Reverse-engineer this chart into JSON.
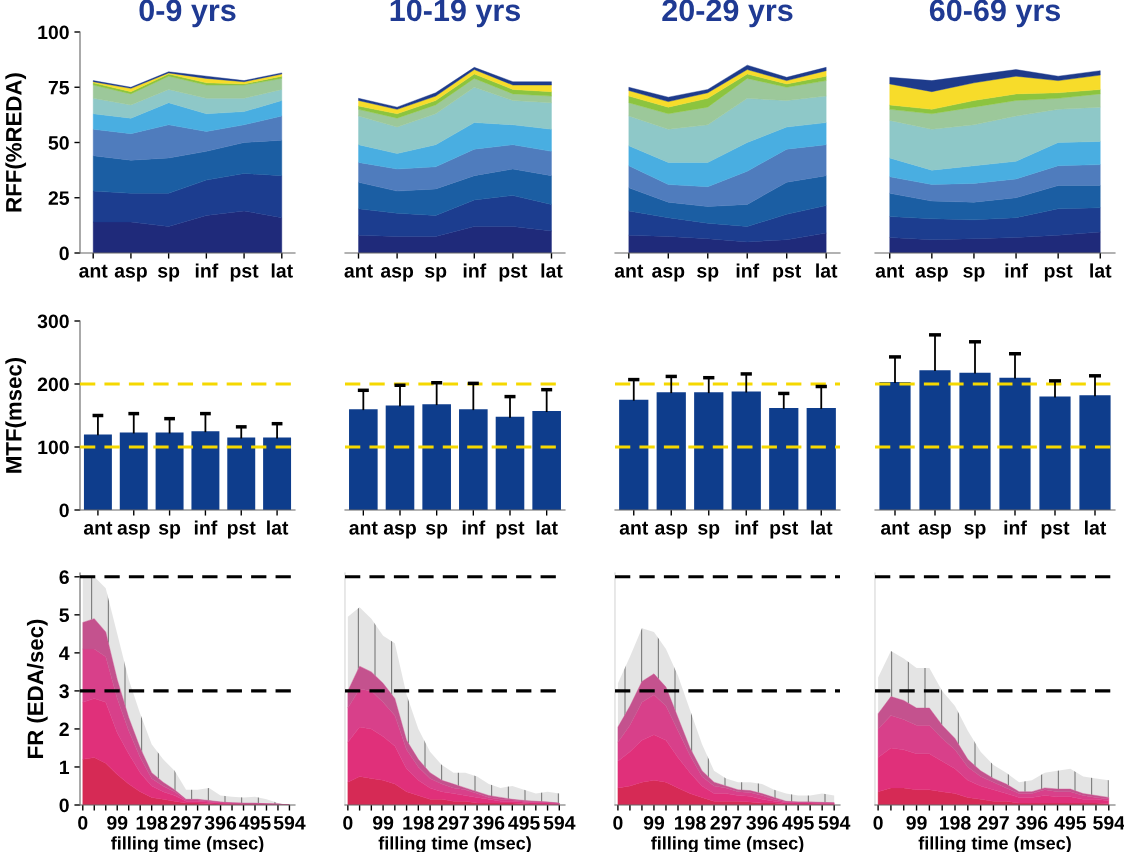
{
  "chart_data": [
    {
      "type": "area",
      "stacked": true,
      "title": "0-9 yrs",
      "ylabel": "RFF(%REDA)",
      "categories": [
        "ant",
        "asp",
        "sp",
        "inf",
        "pst",
        "lat"
      ],
      "ylim": [
        0,
        100
      ],
      "yticks": [
        0,
        25,
        50,
        75,
        100
      ],
      "series": [
        {
          "color": "#1f2a7a",
          "values": [
            14,
            14,
            12,
            17,
            19,
            16
          ]
        },
        {
          "color": "#1c3d8f",
          "values": [
            14,
            13,
            15,
            16,
            17,
            19
          ]
        },
        {
          "color": "#1b5ea3",
          "values": [
            16,
            15,
            16,
            13,
            14,
            16
          ]
        },
        {
          "color": "#4f7cbd",
          "values": [
            12,
            12,
            15,
            9,
            8,
            11
          ]
        },
        {
          "color": "#49aee1",
          "values": [
            7,
            7,
            10,
            8,
            6,
            7
          ]
        },
        {
          "color": "#8ec8c8",
          "values": [
            7,
            6,
            6,
            7,
            6,
            5
          ]
        },
        {
          "color": "#9cc89a",
          "values": [
            6,
            5,
            6,
            6,
            6,
            5
          ]
        },
        {
          "color": "#8cc43f",
          "values": [
            1,
            1,
            1,
            1,
            0.5,
            1
          ]
        },
        {
          "color": "#f7dc2a",
          "values": [
            0.5,
            1.5,
            0.5,
            2,
            1,
            1
          ]
        },
        {
          "color": "#1e3b8b",
          "values": [
            0.5,
            0.5,
            0.5,
            1,
            0.5,
            0.5
          ]
        }
      ]
    },
    {
      "type": "area",
      "stacked": true,
      "title": "10-19 yrs",
      "categories": [
        "ant",
        "asp",
        "sp",
        "inf",
        "pst",
        "lat"
      ],
      "ylim": [
        0,
        100
      ],
      "tick_labels": "x",
      "series": [
        {
          "color": "#1f2a7a",
          "values": [
            8,
            7.5,
            7.5,
            12,
            12,
            10
          ]
        },
        {
          "color": "#1c3d8f",
          "values": [
            12,
            10.5,
            9.5,
            12,
            14,
            12
          ]
        },
        {
          "color": "#1b5ea3",
          "values": [
            12,
            10,
            12,
            11,
            12,
            13
          ]
        },
        {
          "color": "#4f7cbd",
          "values": [
            9,
            10,
            10,
            12,
            11,
            11
          ]
        },
        {
          "color": "#49aee1",
          "values": [
            8,
            7,
            10,
            12,
            9,
            10
          ]
        },
        {
          "color": "#8ec8c8",
          "values": [
            13,
            12,
            14,
            16,
            11,
            12
          ]
        },
        {
          "color": "#9cc89a",
          "values": [
            3,
            4,
            4,
            4,
            3,
            3
          ]
        },
        {
          "color": "#8cc43f",
          "values": [
            1.5,
            2,
            2,
            2,
            2,
            2
          ]
        },
        {
          "color": "#f7dc2a",
          "values": [
            2.5,
            2,
            2,
            2,
            2,
            3
          ]
        },
        {
          "color": "#1e3b8b",
          "values": [
            1,
            1,
            1.5,
            1,
            1.5,
            1.5
          ]
        }
      ]
    },
    {
      "type": "area",
      "stacked": true,
      "title": "20-29 yrs",
      "categories": [
        "ant",
        "asp",
        "sp",
        "inf",
        "pst",
        "lat"
      ],
      "ylim": [
        0,
        100
      ],
      "tick_labels": "x",
      "series": [
        {
          "color": "#1f2a7a",
          "values": [
            8,
            7.5,
            6.5,
            5,
            6,
            9
          ]
        },
        {
          "color": "#1c3d8f",
          "values": [
            11,
            8.5,
            7,
            7,
            11.5,
            12.5
          ]
        },
        {
          "color": "#1b5ea3",
          "values": [
            10.5,
            7,
            7.5,
            10,
            14.5,
            13.5
          ]
        },
        {
          "color": "#4f7cbd",
          "values": [
            10,
            8,
            9,
            15,
            15,
            14
          ]
        },
        {
          "color": "#49aee1",
          "values": [
            9,
            10,
            11,
            13,
            10,
            10
          ]
        },
        {
          "color": "#8ec8c8",
          "values": [
            13.5,
            15,
            17,
            20,
            12,
            12
          ]
        },
        {
          "color": "#9cc89a",
          "values": [
            6,
            7,
            8,
            9,
            6,
            7
          ]
        },
        {
          "color": "#8cc43f",
          "values": [
            3,
            3,
            4,
            2,
            1.5,
            2
          ]
        },
        {
          "color": "#f7dc2a",
          "values": [
            2.5,
            2.5,
            2.5,
            2,
            1.5,
            2.5
          ]
        },
        {
          "color": "#1e3b8b",
          "values": [
            1.5,
            2,
            1.5,
            2,
            1.5,
            1.5
          ]
        }
      ]
    },
    {
      "type": "area",
      "stacked": true,
      "title": "60-69 yrs",
      "categories": [
        "ant",
        "asp",
        "sp",
        "inf",
        "pst",
        "lat"
      ],
      "ylim": [
        0,
        100
      ],
      "tick_labels": "x",
      "series": [
        {
          "color": "#1f2a7a",
          "values": [
            7,
            6,
            6.5,
            7,
            8,
            9.5
          ]
        },
        {
          "color": "#1c3d8f",
          "values": [
            9.5,
            9.5,
            8.5,
            9,
            12,
            11
          ]
        },
        {
          "color": "#1b5ea3",
          "values": [
            10.5,
            8,
            8,
            9,
            10.5,
            10
          ]
        },
        {
          "color": "#4f7cbd",
          "values": [
            7.5,
            7.5,
            8.5,
            8.5,
            9,
            9.5
          ]
        },
        {
          "color": "#49aee1",
          "values": [
            8.5,
            6.5,
            8,
            8,
            10.5,
            10.5
          ]
        },
        {
          "color": "#8ec8c8",
          "values": [
            17,
            18.5,
            18.5,
            20.5,
            15,
            15.5
          ]
        },
        {
          "color": "#9cc89a",
          "values": [
            5,
            7,
            8,
            7,
            5,
            6
          ]
        },
        {
          "color": "#8cc43f",
          "values": [
            2,
            2,
            3,
            3,
            2.5,
            2
          ]
        },
        {
          "color": "#f7dc2a",
          "values": [
            9.5,
            8,
            8,
            8,
            5.5,
            6.5
          ]
        },
        {
          "color": "#1e3b8b",
          "values": [
            3,
            5,
            3.5,
            3,
            2,
            2
          ]
        }
      ]
    },
    {
      "type": "bar",
      "ylabel": "MTF(msec)",
      "categories": [
        "ant",
        "asp",
        "sp",
        "inf",
        "pst",
        "lat"
      ],
      "color": "#0e3d8c",
      "ylim": [
        0,
        300
      ],
      "yticks": [
        0,
        100,
        200,
        300
      ],
      "values": [
        120,
        123,
        123,
        125,
        115,
        115
      ],
      "errors": [
        [
          120,
          150
        ],
        [
          123,
          153
        ],
        [
          123,
          145
        ],
        [
          125,
          153
        ],
        [
          115,
          132
        ],
        [
          115,
          137
        ]
      ],
      "ref_lines": [
        {
          "axis": "y",
          "value": 100,
          "color": "#f5d800",
          "line_style": "dashed"
        },
        {
          "axis": "y",
          "value": 200,
          "color": "#f5d800",
          "line_style": "dashed"
        }
      ]
    },
    {
      "type": "bar",
      "categories": [
        "ant",
        "asp",
        "sp",
        "inf",
        "pst",
        "lat"
      ],
      "color": "#0e3d8c",
      "ylim": [
        0,
        300
      ],
      "tick_labels": "x",
      "values": [
        160,
        166,
        168,
        160,
        148,
        157
      ],
      "errors": [
        [
          160,
          190
        ],
        [
          166,
          198
        ],
        [
          168,
          202
        ],
        [
          160,
          201
        ],
        [
          148,
          180
        ],
        [
          157,
          191
        ]
      ],
      "ref_lines": [
        {
          "axis": "y",
          "value": 100,
          "color": "#f5d800",
          "line_style": "dashed"
        },
        {
          "axis": "y",
          "value": 200,
          "color": "#f5d800",
          "line_style": "dashed"
        }
      ]
    },
    {
      "type": "bar",
      "categories": [
        "ant",
        "asp",
        "sp",
        "inf",
        "pst",
        "lat"
      ],
      "color": "#0e3d8c",
      "ylim": [
        0,
        300
      ],
      "tick_labels": "x",
      "values": [
        175,
        187,
        187,
        188,
        162,
        162
      ],
      "errors": [
        [
          175,
          207
        ],
        [
          187,
          212
        ],
        [
          187,
          210
        ],
        [
          188,
          216
        ],
        [
          162,
          185
        ],
        [
          162,
          196
        ]
      ],
      "ref_lines": [
        {
          "axis": "y",
          "value": 100,
          "color": "#f5d800",
          "line_style": "dashed"
        },
        {
          "axis": "y",
          "value": 200,
          "color": "#f5d800",
          "line_style": "dashed"
        }
      ]
    },
    {
      "type": "bar",
      "categories": [
        "ant",
        "asp",
        "sp",
        "inf",
        "pst",
        "lat"
      ],
      "color": "#0e3d8c",
      "ylim": [
        0,
        300
      ],
      "tick_labels": "x",
      "values": [
        203,
        222,
        218,
        210,
        180,
        182
      ],
      "errors": [
        [
          203,
          243
        ],
        [
          222,
          278
        ],
        [
          218,
          267
        ],
        [
          210,
          248
        ],
        [
          180,
          205
        ],
        [
          182,
          213
        ]
      ],
      "ref_lines": [
        {
          "axis": "y",
          "value": 100,
          "color": "#f5d800",
          "line_style": "dashed"
        },
        {
          "axis": "y",
          "value": 200,
          "color": "#f5d800",
          "line_style": "dashed"
        }
      ]
    },
    {
      "type": "area",
      "stacked": true,
      "ylabel": "FR (EDA/sec)",
      "xlabel": "filling time (msec)",
      "x": [
        0,
        33,
        66,
        99,
        132,
        165,
        198,
        231,
        264,
        297,
        330,
        363,
        396,
        429,
        462,
        495,
        528,
        561,
        594
      ],
      "xlim": [
        -8,
        610
      ],
      "ylim": [
        0,
        6.1
      ],
      "yticks": [
        0,
        1,
        2,
        3,
        4,
        5,
        6
      ],
      "xticks": [
        0,
        {
          "value": 33,
          "label": null
        },
        {
          "value": 66,
          "label": null
        },
        99,
        {
          "value": 132,
          "label": null
        },
        {
          "value": 165,
          "label": null
        },
        198,
        {
          "value": 231,
          "label": null
        },
        {
          "value": 264,
          "label": null
        },
        297,
        {
          "value": 330,
          "label": null
        },
        {
          "value": 363,
          "label": null
        },
        396,
        {
          "value": 429,
          "label": null
        },
        {
          "value": 462,
          "label": null
        },
        495,
        {
          "value": 528,
          "label": null
        },
        {
          "value": 561,
          "label": null
        },
        594
      ],
      "series": [
        {
          "color": "#d62a55",
          "values": [
            1.2,
            1.25,
            1.1,
            0.8,
            0.55,
            0.35,
            0.2,
            0.15,
            0.1,
            0.05,
            0.05,
            0.03,
            0.02,
            0.02,
            0.01,
            0.01,
            0.01,
            0.01,
            0
          ]
        },
        {
          "color": "#e0307a",
          "values": [
            1.5,
            1.55,
            1.6,
            1.1,
            0.8,
            0.5,
            0.3,
            0.2,
            0.15,
            0.05,
            0.05,
            0.04,
            0.03,
            0.02,
            0.02,
            0.02,
            0.01,
            0.01,
            0
          ]
        },
        {
          "color": "#d8408a",
          "values": [
            1.4,
            1.3,
            1.2,
            0.9,
            0.6,
            0.4,
            0.2,
            0.15,
            0.1,
            0.03,
            0.03,
            0.03,
            0.02,
            0.01,
            0.01,
            0.01,
            0.01,
            0,
            0
          ]
        },
        {
          "color": "#c4528e",
          "values": [
            0.7,
            0.8,
            0.65,
            0.5,
            0.35,
            0.25,
            0.15,
            0.1,
            0.05,
            0.02,
            0.02,
            0.02,
            0.01,
            0.01,
            0.01,
            0.01,
            0,
            0,
            0
          ],
          "lower": [
            4.8,
            4.9,
            4.55,
            3.3,
            2.3,
            1.5,
            0.85,
            0.6,
            0.4,
            0.15,
            0.15,
            0.12,
            0.08,
            0.06,
            0.05,
            0.05,
            0.03,
            0.02,
            0
          ],
          "upper": [
            6,
            6,
            5.7,
            4.5,
            3.3,
            2.4,
            1.6,
            1.2,
            0.9,
            0.4,
            0.4,
            0.45,
            0.25,
            0.22,
            0.2,
            0.22,
            0.15,
            0.05,
            0
          ]
        }
      ],
      "ref_lines": [
        {
          "axis": "y",
          "value": 3,
          "color": "#000000",
          "line_style": "dashed"
        },
        {
          "axis": "y",
          "value": 6,
          "color": "#000000",
          "line_style": "dashed"
        }
      ]
    },
    {
      "type": "area",
      "stacked": true,
      "xlabel": "filling time (msec)",
      "x": [
        0,
        33,
        66,
        99,
        132,
        165,
        198,
        231,
        264,
        297,
        330,
        363,
        396,
        429,
        462,
        495,
        528,
        561,
        594
      ],
      "xlim": [
        -8,
        610
      ],
      "ylim": [
        0,
        6.1
      ],
      "tick_labels": "x",
      "xticks": [
        0,
        {
          "value": 33,
          "label": null
        },
        {
          "value": 66,
          "label": null
        },
        99,
        {
          "value": 132,
          "label": null
        },
        {
          "value": 165,
          "label": null
        },
        198,
        {
          "value": 231,
          "label": null
        },
        {
          "value": 264,
          "label": null
        },
        297,
        {
          "value": 330,
          "label": null
        },
        {
          "value": 363,
          "label": null
        },
        396,
        {
          "value": 429,
          "label": null
        },
        {
          "value": 462,
          "label": null
        },
        495,
        {
          "value": 528,
          "label": null
        },
        {
          "value": 561,
          "label": null
        },
        594
      ],
      "series": [
        {
          "color": "#d62a55",
          "values": [
            0.6,
            0.75,
            0.7,
            0.65,
            0.55,
            0.35,
            0.25,
            0.15,
            0.15,
            0.1,
            0.1,
            0.05,
            0.05,
            0.05,
            0.05,
            0.03,
            0.02,
            0.02,
            0.01
          ]
        },
        {
          "color": "#e0307a",
          "values": [
            1.05,
            1.3,
            1.3,
            1.15,
            1.0,
            0.6,
            0.4,
            0.3,
            0.2,
            0.2,
            0.15,
            0.15,
            0.1,
            0.05,
            0.05,
            0.04,
            0.04,
            0.03,
            0.02
          ]
        },
        {
          "color": "#d8408a",
          "values": [
            0.9,
            1.0,
            1.0,
            0.9,
            0.8,
            0.5,
            0.35,
            0.25,
            0.2,
            0.15,
            0.15,
            0.1,
            0.05,
            0.05,
            0.03,
            0.03,
            0.02,
            0.02,
            0.01
          ]
        },
        {
          "color": "#c4528e",
          "values": [
            0.45,
            0.6,
            0.5,
            0.5,
            0.45,
            0.25,
            0.2,
            0.15,
            0.1,
            0.1,
            0.05,
            0.05,
            0.05,
            0.05,
            0.02,
            0.02,
            0.02,
            0.01,
            0.01
          ],
          "lower": [
            3.0,
            3.65,
            3.5,
            3.2,
            2.8,
            1.7,
            1.2,
            0.85,
            0.65,
            0.55,
            0.45,
            0.35,
            0.25,
            0.2,
            0.15,
            0.12,
            0.1,
            0.08,
            0.05
          ],
          "upper": [
            4.95,
            5.2,
            4.9,
            4.45,
            4.25,
            2.9,
            2.0,
            1.4,
            1.05,
            0.85,
            0.85,
            0.75,
            0.55,
            0.45,
            0.5,
            0.4,
            0.3,
            0.35,
            0.3
          ]
        }
      ],
      "ref_lines": [
        {
          "axis": "y",
          "value": 3,
          "color": "#000000",
          "line_style": "dashed"
        },
        {
          "axis": "y",
          "value": 6,
          "color": "#000000",
          "line_style": "dashed"
        }
      ]
    },
    {
      "type": "area",
      "stacked": true,
      "xlabel": "filling time (msec)",
      "x": [
        0,
        33,
        66,
        99,
        132,
        165,
        198,
        231,
        264,
        297,
        330,
        363,
        396,
        429,
        462,
        495,
        528,
        561,
        594
      ],
      "xlim": [
        -8,
        610
      ],
      "ylim": [
        0,
        6.1
      ],
      "tick_labels": "x",
      "xticks": [
        0,
        {
          "value": 33,
          "label": null
        },
        {
          "value": 66,
          "label": null
        },
        99,
        {
          "value": 132,
          "label": null
        },
        {
          "value": 165,
          "label": null
        },
        198,
        {
          "value": 231,
          "label": null
        },
        {
          "value": 264,
          "label": null
        },
        297,
        {
          "value": 330,
          "label": null
        },
        {
          "value": 363,
          "label": null
        },
        396,
        {
          "value": 429,
          "label": null
        },
        {
          "value": 462,
          "label": null
        },
        495,
        {
          "value": 528,
          "label": null
        },
        {
          "value": 561,
          "label": null
        },
        594
      ],
      "series": [
        {
          "color": "#d62a55",
          "values": [
            0.45,
            0.5,
            0.6,
            0.65,
            0.6,
            0.45,
            0.3,
            0.2,
            0.1,
            0.1,
            0.1,
            0.08,
            0.05,
            0.05,
            0.02,
            0.02,
            0.02,
            0.02,
            0.01
          ]
        },
        {
          "color": "#e0307a",
          "values": [
            0.7,
            0.9,
            1.1,
            1.2,
            1.1,
            0.8,
            0.55,
            0.3,
            0.2,
            0.2,
            0.15,
            0.15,
            0.1,
            0.05,
            0.04,
            0.03,
            0.03,
            0.02,
            0.02
          ]
        },
        {
          "color": "#d8408a",
          "values": [
            0.5,
            0.7,
            1.0,
            1.05,
            0.9,
            0.7,
            0.45,
            0.25,
            0.2,
            0.15,
            0.1,
            0.1,
            0.1,
            0.05,
            0.02,
            0.02,
            0.02,
            0.02,
            0.02
          ]
        },
        {
          "color": "#c4528e",
          "values": [
            0.4,
            0.5,
            0.55,
            0.55,
            0.5,
            0.35,
            0.2,
            0.15,
            0.1,
            0.05,
            0.05,
            0.05,
            0.05,
            0.05,
            0.02,
            0.01,
            0.01,
            0.01,
            0.01
          ],
          "lower": [
            2.05,
            2.6,
            3.25,
            3.45,
            3.1,
            2.3,
            1.5,
            0.9,
            0.6,
            0.5,
            0.4,
            0.38,
            0.3,
            0.2,
            0.1,
            0.08,
            0.08,
            0.07,
            0.06
          ],
          "upper": [
            3.2,
            3.9,
            4.65,
            4.55,
            4.1,
            3.4,
            2.5,
            1.6,
            0.9,
            0.7,
            0.6,
            0.6,
            0.55,
            0.4,
            0.3,
            0.25,
            0.25,
            0.3,
            0.25
          ]
        }
      ],
      "ref_lines": [
        {
          "axis": "y",
          "value": 3,
          "color": "#000000",
          "line_style": "dashed"
        },
        {
          "axis": "y",
          "value": 6,
          "color": "#000000",
          "line_style": "dashed"
        }
      ]
    },
    {
      "type": "area",
      "stacked": true,
      "xlabel": "filling time (msec)",
      "x": [
        0,
        33,
        66,
        99,
        132,
        165,
        198,
        231,
        264,
        297,
        330,
        363,
        396,
        429,
        462,
        495,
        528,
        561,
        594
      ],
      "xlim": [
        -8,
        610
      ],
      "ylim": [
        0,
        6.1
      ],
      "tick_labels": "x",
      "xticks": [
        0,
        {
          "value": 33,
          "label": null
        },
        {
          "value": 66,
          "label": null
        },
        99,
        {
          "value": 132,
          "label": null
        },
        {
          "value": 165,
          "label": null
        },
        198,
        {
          "value": 231,
          "label": null
        },
        {
          "value": 264,
          "label": null
        },
        297,
        {
          "value": 330,
          "label": null
        },
        {
          "value": 363,
          "label": null
        },
        396,
        {
          "value": 429,
          "label": null
        },
        {
          "value": 462,
          "label": null
        },
        495,
        {
          "value": 528,
          "label": null
        },
        {
          "value": 561,
          "label": null
        },
        594
      ],
      "series": [
        {
          "color": "#d62a55",
          "values": [
            0.35,
            0.45,
            0.45,
            0.4,
            0.4,
            0.35,
            0.3,
            0.2,
            0.15,
            0.1,
            0.1,
            0.05,
            0.05,
            0.05,
            0.05,
            0.05,
            0.05,
            0.05,
            0.03
          ]
        },
        {
          "color": "#e0307a",
          "values": [
            0.9,
            1.05,
            1.0,
            0.95,
            0.95,
            0.8,
            0.65,
            0.45,
            0.35,
            0.3,
            0.2,
            0.15,
            0.15,
            0.2,
            0.17,
            0.17,
            0.1,
            0.1,
            0.08
          ]
        },
        {
          "color": "#d8408a",
          "values": [
            0.75,
            0.85,
            0.8,
            0.75,
            0.75,
            0.6,
            0.5,
            0.35,
            0.25,
            0.2,
            0.15,
            0.1,
            0.1,
            0.15,
            0.13,
            0.13,
            0.1,
            0.05,
            0.05
          ]
        },
        {
          "color": "#c4528e",
          "values": [
            0.4,
            0.5,
            0.5,
            0.45,
            0.45,
            0.35,
            0.3,
            0.2,
            0.15,
            0.1,
            0.1,
            0.05,
            0.05,
            0.05,
            0.07,
            0.07,
            0.05,
            0.05,
            0.04
          ],
          "lower": [
            2.4,
            2.85,
            2.75,
            2.55,
            2.55,
            2.1,
            1.75,
            1.2,
            0.9,
            0.7,
            0.55,
            0.35,
            0.35,
            0.45,
            0.42,
            0.42,
            0.3,
            0.25,
            0.2
          ],
          "upper": [
            3.35,
            4.05,
            3.85,
            3.6,
            3.6,
            3.0,
            2.6,
            1.95,
            1.4,
            1.05,
            0.85,
            0.6,
            0.65,
            0.85,
            0.9,
            0.95,
            0.75,
            0.7,
            0.65
          ]
        }
      ],
      "ref_lines": [
        {
          "axis": "y",
          "value": 3,
          "color": "#000000",
          "line_style": "dashed"
        },
        {
          "axis": "y",
          "value": 6,
          "color": "#000000",
          "line_style": "dashed"
        }
      ]
    }
  ]
}
